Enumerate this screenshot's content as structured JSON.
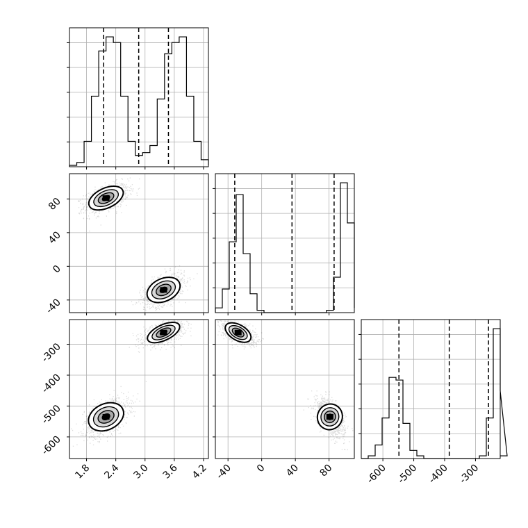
{
  "chart_data": {
    "type": "corner",
    "grid": true,
    "parameters": [
      {
        "range": [
          1.45,
          4.3
        ],
        "ticks": [
          1.8,
          2.4,
          3.0,
          3.6,
          4.2
        ],
        "tick_labels": [
          "1.8",
          "2.4",
          "3.0",
          "3.6",
          "4.2"
        ],
        "quantiles": [
          2.15,
          2.87,
          3.48
        ],
        "hist": {
          "start": 1.45,
          "bin_width": 0.15,
          "counts": [
            1,
            3,
            18,
            50,
            82,
            92,
            88,
            50,
            18,
            8,
            10,
            15,
            48,
            80,
            88,
            92,
            50,
            18,
            5,
            1
          ]
        }
      },
      {
        "range": [
          -55,
          110
        ],
        "ticks": [
          -40,
          0,
          40,
          80
        ],
        "tick_labels": [
          "-40",
          "0",
          "40",
          "80"
        ],
        "quantiles": [
          -32,
          36,
          86
        ],
        "hist": {
          "start": -55,
          "bin_width": 8.25,
          "counts": [
            2,
            10,
            30,
            50,
            25,
            8,
            1,
            0,
            0,
            0,
            0,
            0,
            0,
            0,
            0,
            0,
            1,
            15,
            55,
            38,
            2
          ]
        }
      },
      {
        "range": [
          -670,
          -220
        ],
        "ticks": [
          -600,
          -500,
          -400,
          -300
        ],
        "tick_labels": [
          "-600",
          "-500",
          "-400",
          "-300"
        ],
        "quantiles": [
          -548,
          -385,
          -258
        ],
        "hist": {
          "start": -670,
          "bin_width": 22.5,
          "counts": [
            0,
            1,
            5,
            15,
            30,
            29,
            13,
            3,
            1,
            0,
            0,
            0,
            0,
            0,
            0,
            0,
            0,
            1,
            15,
            48,
            25,
            1
          ]
        }
      }
    ],
    "clusters": [
      {
        "means": [
          2.2,
          81,
          -535
        ],
        "sd": [
          0.18,
          7,
          25
        ]
      },
      {
        "means": [
          3.38,
          -28,
          -262
        ],
        "sd": [
          0.17,
          8,
          15
        ]
      }
    ],
    "panel_x_ticks": [
      "1.8",
      "2.4",
      "3.0",
      "3.6",
      "4.2",
      "-40",
      "0",
      "40",
      "80",
      "-600",
      "-500",
      "-400",
      "-300"
    ],
    "panel_y_ticks": [
      "80",
      "40",
      "0",
      "-40",
      "-300",
      "-400",
      "-500",
      "-600"
    ]
  }
}
